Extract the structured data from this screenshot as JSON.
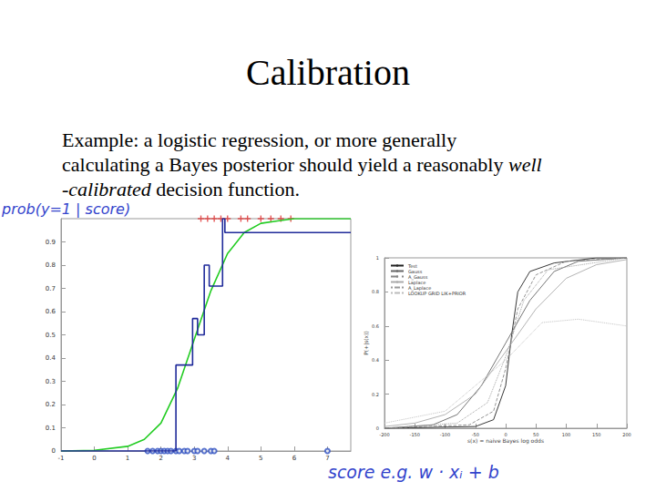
{
  "slide": {
    "title": "Calibration",
    "text": [
      [
        {
          "text": "Example: a logistic regression, or more generally"
        }
      ],
      [
        {
          "text": "calculating a Bayes posterior should yield a reasonably "
        },
        {
          "text": "well",
          "italic": true
        }
      ],
      [
        {
          "text": "-calibrated",
          "italic": true
        },
        {
          "text": " decision function."
        }
      ]
    ],
    "annotations": [
      "prob(y=1 | score)",
      "score  e.g.  w · xᵢ + b"
    ]
  },
  "chart_data": [
    {
      "type": "line",
      "xlim": [
        -1,
        7.7
      ],
      "xticks": [
        -1,
        0,
        1,
        2,
        3,
        4,
        5,
        6,
        7
      ],
      "ylim": [
        0,
        1
      ],
      "yticks": [
        0,
        0.1,
        0.2,
        0.3,
        0.4,
        0.5,
        0.6,
        0.7,
        0.8,
        0.9
      ],
      "grid": false,
      "series": [
        {
          "type": "line",
          "color": "#22cc22",
          "line_style": "solid",
          "x": [
            -1,
            0,
            1,
            1.5,
            2,
            2.5,
            3,
            3.5,
            4,
            4.5,
            5,
            5.5,
            6,
            7.7
          ],
          "values": [
            0,
            0.003,
            0.02,
            0.05,
            0.12,
            0.27,
            0.48,
            0.69,
            0.85,
            0.94,
            0.98,
            0.99,
            1,
            1
          ]
        },
        {
          "type": "line",
          "color": "#1f2a9a",
          "line_style": "solid",
          "x": [
            -1,
            2.45,
            2.45,
            2.95,
            2.95,
            3.1,
            3.1,
            3.3,
            3.3,
            3.45,
            3.45,
            3.85,
            3.85,
            3.92,
            3.92,
            7.7
          ],
          "values": [
            0,
            0,
            0.37,
            0.37,
            0.57,
            0.57,
            0.5,
            0.5,
            0.8,
            0.8,
            0.71,
            0.71,
            1,
            1,
            0.94,
            0.94
          ]
        },
        {
          "type": "scatter",
          "color": "#e03030",
          "marker": "plus",
          "x": [
            3.2,
            3.4,
            3.6,
            3.8,
            4.0,
            4.4,
            4.6,
            5.0,
            5.3,
            5.6,
            5.9
          ],
          "values": [
            1,
            1,
            1,
            1,
            1,
            1,
            1,
            1,
            1,
            1,
            1
          ]
        },
        {
          "type": "scatter",
          "color": "#3050c0",
          "marker": "circle",
          "x": [
            1.6,
            1.75,
            1.9,
            2.0,
            2.1,
            2.2,
            2.3,
            2.45,
            2.55,
            2.7,
            2.8,
            3.0,
            3.1,
            3.3,
            3.5,
            3.6,
            7.0
          ],
          "values": [
            0,
            0,
            0,
            0,
            0,
            0,
            0,
            0,
            0,
            0,
            0,
            0,
            0,
            0,
            0,
            0,
            0
          ]
        }
      ]
    },
    {
      "type": "line",
      "xlabel": "s(x) = naive Bayes log odds",
      "ylabel": "P(+|s(x))",
      "xlim": [
        -200,
        200
      ],
      "xticks": [
        -200,
        -150,
        -100,
        -50,
        0,
        50,
        100,
        150,
        200
      ],
      "ylim": [
        0,
        1
      ],
      "yticks": [
        0,
        0.2,
        0.4,
        0.6,
        0.8,
        1
      ],
      "grid": false,
      "legend": "upper left",
      "series": [
        {
          "name": "Test",
          "color": "#222222",
          "line_style": "solid",
          "x": [
            -200,
            -50,
            -20,
            0,
            10,
            20,
            40,
            80,
            150,
            200
          ],
          "values": [
            0,
            0.01,
            0.05,
            0.25,
            0.55,
            0.8,
            0.92,
            0.97,
            1,
            1
          ]
        },
        {
          "name": "Gauss",
          "color": "#666666",
          "line_style": "solid",
          "x": [
            -200,
            -120,
            -80,
            -40,
            0,
            40,
            80,
            120,
            200
          ],
          "values": [
            0,
            0.02,
            0.08,
            0.25,
            0.5,
            0.75,
            0.92,
            0.98,
            1
          ]
        },
        {
          "name": "A_Gauss",
          "color": "#888888",
          "line_style": "dashed",
          "x": [
            -200,
            -60,
            -20,
            0,
            20,
            50,
            100,
            200
          ],
          "values": [
            0,
            0.02,
            0.1,
            0.35,
            0.7,
            0.9,
            0.98,
            1
          ]
        },
        {
          "name": "Laplace",
          "color": "#aaaaaa",
          "line_style": "solid",
          "x": [
            -200,
            -150,
            -100,
            -50,
            0,
            50,
            100,
            150,
            200
          ],
          "values": [
            0.01,
            0.03,
            0.08,
            0.2,
            0.45,
            0.7,
            0.88,
            0.96,
            0.99
          ]
        },
        {
          "name": "A_Laplace",
          "color": "#999999",
          "line_style": "dotted",
          "x": [
            -200,
            -80,
            -30,
            0,
            30,
            70,
            200
          ],
          "values": [
            0,
            0.03,
            0.15,
            0.42,
            0.75,
            0.93,
            1
          ]
        },
        {
          "name": "LOOKUP GRID LIK+PRIOR",
          "color": "#bbbbbb",
          "line_style": "dotted",
          "x": [
            -200,
            -100,
            0,
            60,
            120,
            200
          ],
          "values": [
            0.03,
            0.1,
            0.4,
            0.62,
            0.64,
            0.6
          ]
        }
      ]
    }
  ]
}
